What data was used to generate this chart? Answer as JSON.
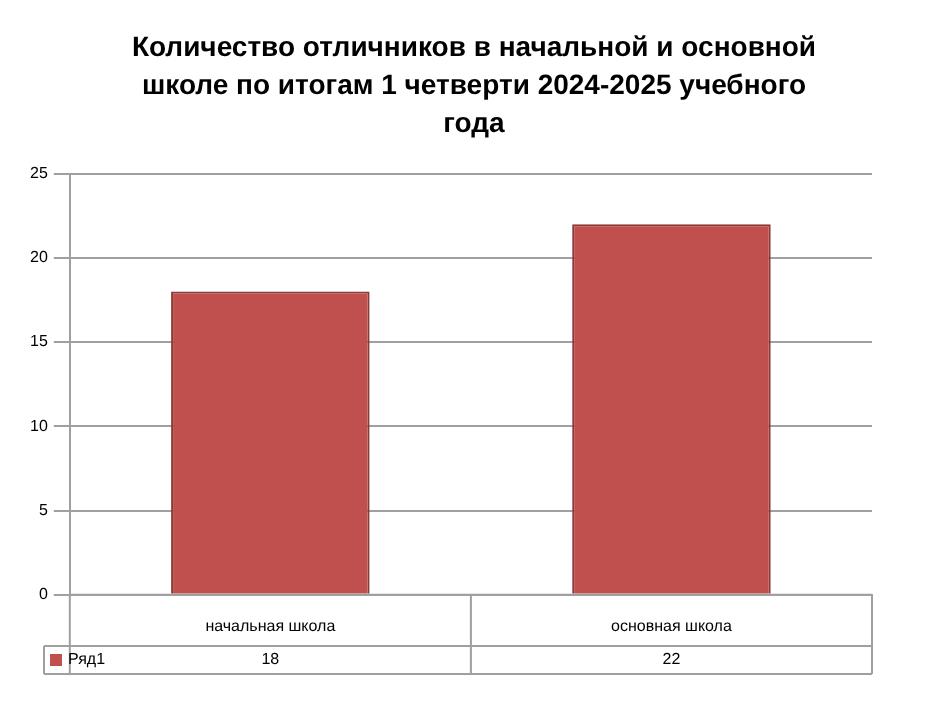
{
  "chart_data": {
    "type": "bar",
    "title": "Количество отличников в начальной и основной школе по итогам 1 четверти 2024-2025 учебного года",
    "categories": [
      "начальная школа",
      "основная школа"
    ],
    "series": [
      {
        "name": "Ряд1",
        "color": "#c0504d",
        "values": [
          18,
          22
        ]
      }
    ],
    "ylim": [
      0,
      25
    ],
    "yticks": [
      0,
      5,
      10,
      15,
      20,
      25
    ],
    "grid": "y",
    "data_labels": true
  }
}
